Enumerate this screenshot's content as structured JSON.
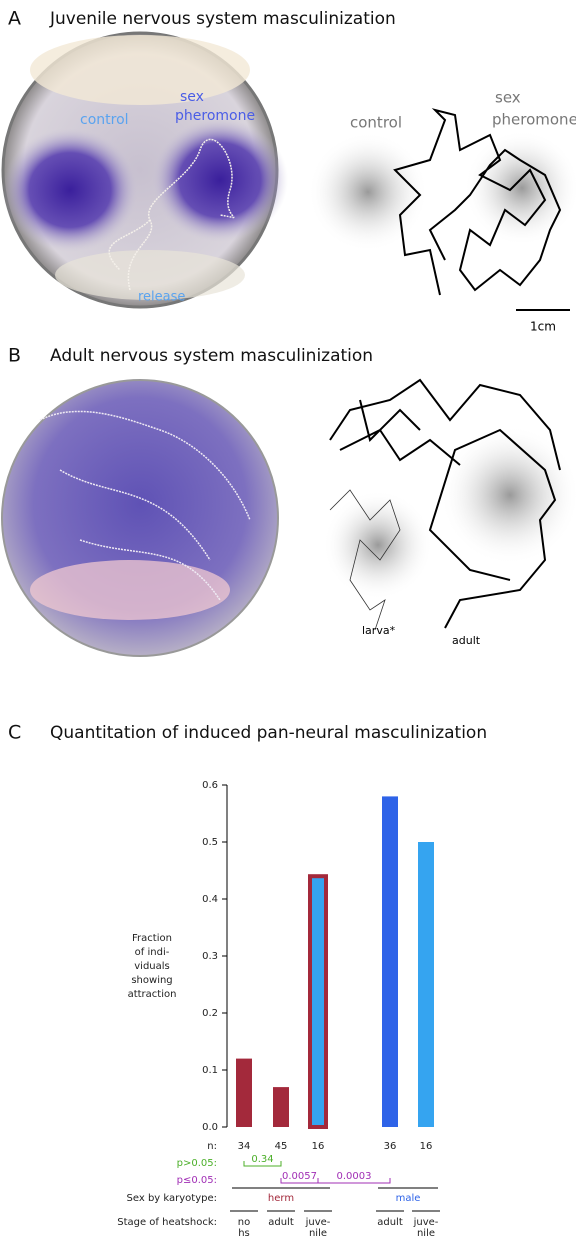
{
  "panels": [
    {
      "letter": "A",
      "title": "Juvenile nervous system masculinization",
      "photo_labels": {
        "control": "control",
        "sex": [
          "sex",
          "pheromone"
        ],
        "release": "release"
      },
      "drawing_labels": {
        "control": "control",
        "sex": [
          "sex",
          "pheromone"
        ]
      },
      "scale_label": "1cm"
    },
    {
      "letter": "B",
      "title": "Adult nervous system masculinization",
      "drawing_labels": {
        "larva": "larva*",
        "adult": "adult"
      }
    },
    {
      "letter": "C",
      "title": "Quantitation of induced pan-neural masculinization"
    }
  ],
  "chart_data": {
    "type": "bar",
    "y_label": [
      "Fraction",
      "of indi-",
      "viduals",
      "showing",
      "attraction"
    ],
    "categories": [
      [
        "no",
        "hs"
      ],
      [
        "adult"
      ],
      [
        "juve-",
        "nile"
      ],
      [
        "adult"
      ],
      [
        "juve-",
        "nile"
      ]
    ],
    "values": [
      0.12,
      0.07,
      0.44,
      0.58,
      0.5
    ],
    "colors": [
      "#a3293b",
      "#a3293b",
      "#35a4f0",
      "#2e63e8",
      "#35a4f0"
    ],
    "outline_colors": [
      null,
      null,
      "#a3293b",
      null,
      null
    ],
    "ylim": [
      0,
      0.6
    ],
    "yticks": [
      {
        "value": 0,
        "label": "0.0"
      },
      0.1,
      0.2,
      0.3,
      0.4,
      0.5,
      0.6
    ],
    "n_label": "n:",
    "n": [
      34,
      45,
      16,
      36,
      16
    ],
    "p_rows": [
      {
        "label": "p>0.05:",
        "color": "#4caf2a"
      },
      {
        "label": "p≤0.05:",
        "color": "#a12fb5"
      }
    ],
    "comparisons": [
      {
        "from": 0,
        "to": 1,
        "row": 0,
        "label": "0.34"
      },
      {
        "from": 1,
        "to": 2,
        "row": 1,
        "label": "0.0057"
      },
      {
        "from": 2,
        "to": 3,
        "row": 1,
        "label": "0.0003"
      }
    ],
    "sex_label": "Sex by karyotype:",
    "sex_groups": [
      {
        "name": "herm",
        "color": "#a3293b",
        "from": 0,
        "to": 2
      },
      {
        "name": "male",
        "color": "#2e63e8",
        "from": 3,
        "to": 4
      }
    ],
    "stage_label": "Stage of heatshock:"
  }
}
